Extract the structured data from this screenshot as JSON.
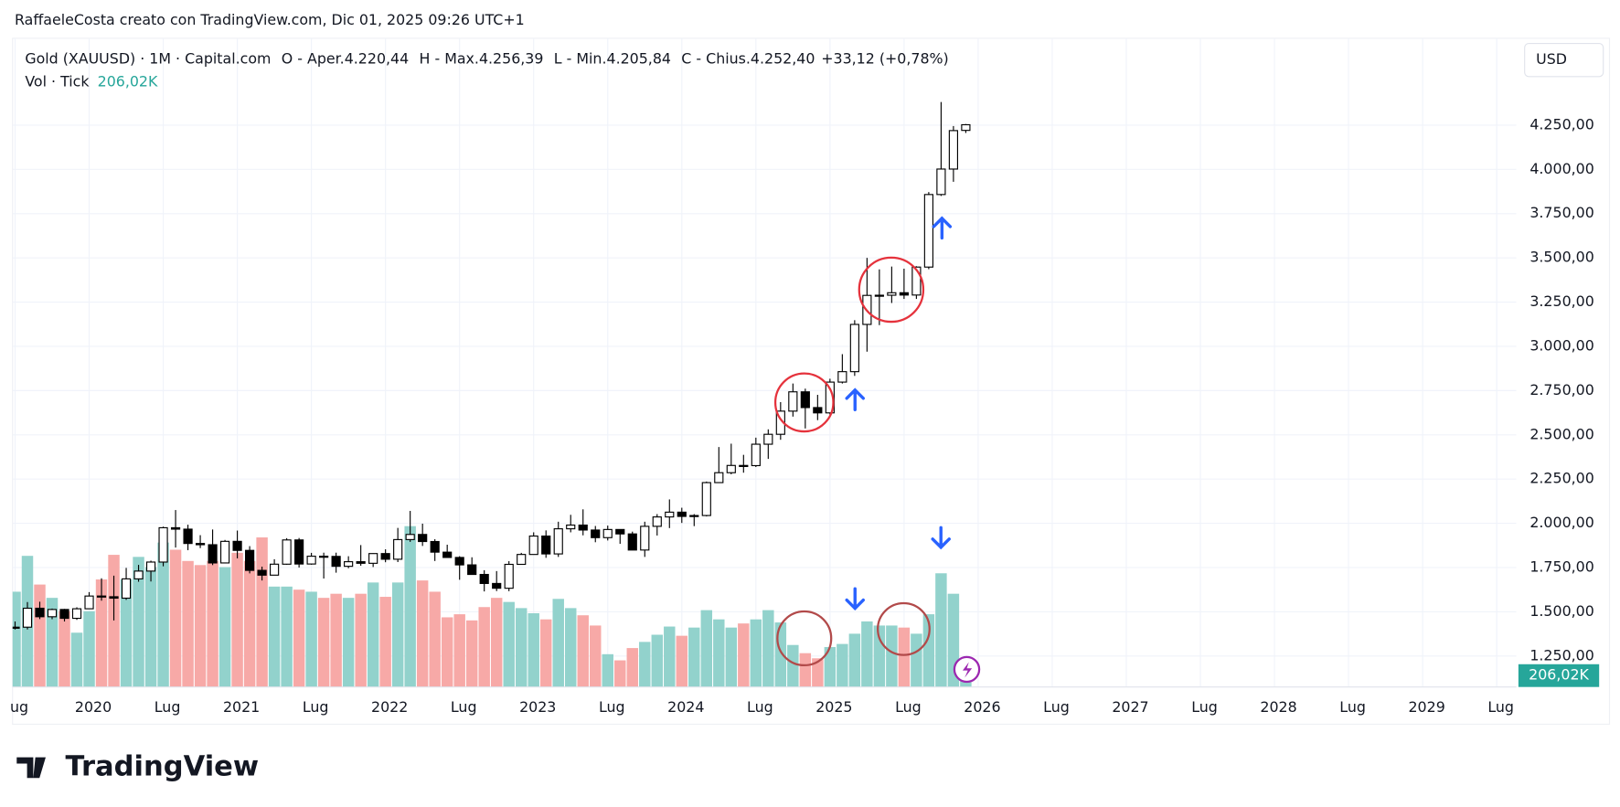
{
  "header": "RaffaeleCosta creato con TradingView.com, Dic 01, 2025 09:26 UTC+1",
  "chart_data": {
    "type": "candlestick",
    "title": "Gold (XAUUSD) · 1M · Capital.com",
    "ohlc_legend": [
      [
        "O - Aper.",
        "4.220,44"
      ],
      [
        "H - Max.",
        "4.256,39"
      ],
      [
        "L - Min.",
        "4.205,84"
      ],
      [
        "C - Chius.",
        "4.252,40"
      ]
    ],
    "change": "+33,12 (+0,78%)",
    "currency": "USD",
    "x": [
      "2019-07",
      "2019-08",
      "2019-09",
      "2019-10",
      "2019-11",
      "2019-12",
      "2020-01",
      "2020-02",
      "2020-03",
      "2020-04",
      "2020-05",
      "2020-06",
      "2020-07",
      "2020-08",
      "2020-09",
      "2020-10",
      "2020-11",
      "2020-12",
      "2021-01",
      "2021-02",
      "2021-03",
      "2021-04",
      "2021-05",
      "2021-06",
      "2021-07",
      "2021-08",
      "2021-09",
      "2021-10",
      "2021-11",
      "2021-12",
      "2022-01",
      "2022-02",
      "2022-03",
      "2022-04",
      "2022-05",
      "2022-06",
      "2022-07",
      "2022-08",
      "2022-09",
      "2022-10",
      "2022-11",
      "2022-12",
      "2023-01",
      "2023-02",
      "2023-03",
      "2023-04",
      "2023-05",
      "2023-06",
      "2023-07",
      "2023-08",
      "2023-09",
      "2023-10",
      "2023-11",
      "2023-12",
      "2024-01",
      "2024-02",
      "2024-03",
      "2024-04",
      "2024-05",
      "2024-06",
      "2024-07",
      "2024-08",
      "2024-09",
      "2024-10",
      "2024-11",
      "2024-12",
      "2025-01",
      "2025-02",
      "2025-03",
      "2025-04",
      "2025-05",
      "2025-06",
      "2025-07",
      "2025-08",
      "2025-09",
      "2025-10",
      "2025-11",
      "2025-12"
    ],
    "open": [
      1409,
      1413,
      1520,
      1472,
      1513,
      1463,
      1517,
      1589,
      1585,
      1577,
      1686,
      1730,
      1781,
      1975,
      1967,
      1886,
      1879,
      1776,
      1898,
      1847,
      1734,
      1707,
      1769,
      1906,
      1770,
      1814,
      1813,
      1757,
      1783,
      1774,
      1829,
      1797,
      1908,
      1937,
      1897,
      1837,
      1807,
      1765,
      1711,
      1660,
      1633,
      1768,
      1824,
      1928,
      1827,
      1969,
      1990,
      1962,
      1919,
      1965,
      1940,
      1849,
      1983,
      2036,
      2063,
      2039,
      2044,
      2230,
      2286,
      2327,
      2326,
      2447,
      2503,
      2634,
      2743,
      2654,
      2624,
      2798,
      2857,
      3124,
      3288,
      3289,
      3303,
      3290,
      3448,
      3858,
      4002,
      4220.44
    ],
    "high": [
      1445,
      1555,
      1557,
      1518,
      1516,
      1525,
      1611,
      1689,
      1704,
      1748,
      1765,
      1789,
      1981,
      2075,
      1992,
      1933,
      1965,
      1906,
      1959,
      1871,
      1755,
      1797,
      1916,
      1917,
      1833,
      1834,
      1834,
      1814,
      1877,
      1831,
      1853,
      1974,
      2070,
      1998,
      1910,
      1879,
      1814,
      1808,
      1735,
      1730,
      1786,
      1833,
      1949,
      1960,
      2009,
      2048,
      2079,
      1985,
      1987,
      1966,
      1953,
      2009,
      2052,
      2135,
      2088,
      2052,
      2236,
      2431,
      2450,
      2387,
      2484,
      2531,
      2685,
      2790,
      2761,
      2726,
      2817,
      2956,
      3148,
      3500,
      3435,
      3451,
      3439,
      3453,
      3872,
      4381,
      4245,
      4256.39
    ],
    "low": [
      1400,
      1400,
      1459,
      1458,
      1445,
      1454,
      1517,
      1563,
      1451,
      1567,
      1670,
      1671,
      1757,
      1863,
      1848,
      1860,
      1764,
      1775,
      1802,
      1717,
      1677,
      1706,
      1766,
      1750,
      1766,
      1688,
      1721,
      1746,
      1760,
      1753,
      1780,
      1781,
      1895,
      1872,
      1787,
      1805,
      1681,
      1710,
      1615,
      1617,
      1616,
      1766,
      1823,
      1805,
      1810,
      1949,
      1932,
      1893,
      1903,
      1884,
      1848,
      1810,
      1931,
      1973,
      2002,
      1984,
      2039,
      2228,
      2277,
      2286,
      2318,
      2364,
      2472,
      2603,
      2536,
      2583,
      2614,
      2790,
      2833,
      2970,
      3120,
      3245,
      3268,
      3268,
      3436,
      3850,
      3930,
      4205.84
    ],
    "close": [
      1413,
      1520,
      1472,
      1513,
      1463,
      1517,
      1589,
      1585,
      1577,
      1686,
      1730,
      1781,
      1975,
      1967,
      1886,
      1879,
      1776,
      1898,
      1847,
      1734,
      1707,
      1769,
      1906,
      1770,
      1814,
      1813,
      1757,
      1783,
      1774,
      1829,
      1797,
      1908,
      1937,
      1897,
      1837,
      1807,
      1765,
      1711,
      1660,
      1633,
      1768,
      1824,
      1928,
      1827,
      1969,
      1990,
      1962,
      1919,
      1965,
      1940,
      1849,
      1983,
      2036,
      2063,
      2039,
      2044,
      2230,
      2286,
      2327,
      2326,
      2447,
      2503,
      2634,
      2743,
      2654,
      2624,
      2798,
      2857,
      3124,
      3288,
      3289,
      3303,
      3290,
      3448,
      3858,
      4002,
      4219.28,
      4252.4
    ],
    "up_color": "#ffffff",
    "down_color": "#000000",
    "grid": true,
    "ylim": [
      1075,
      4741
    ],
    "yticks": [
      {
        "value": 1250,
        "label": "1.250,00"
      },
      {
        "value": 1500,
        "label": "1.500,00"
      },
      {
        "value": 1750,
        "label": "1.750,00"
      },
      {
        "value": 2000,
        "label": "2.000,00"
      },
      {
        "value": 2250,
        "label": "2.250,00"
      },
      {
        "value": 2500,
        "label": "2.500,00"
      },
      {
        "value": 2750,
        "label": "2.750,00"
      },
      {
        "value": 3000,
        "label": "3.000,00"
      },
      {
        "value": 3250,
        "label": "3.250,00"
      },
      {
        "value": 3500,
        "label": "3.500,00"
      },
      {
        "value": 3750,
        "label": "3.750,00"
      },
      {
        "value": 4000,
        "label": "4.000,00"
      },
      {
        "value": 4250,
        "label": "4.250,00"
      }
    ],
    "xticks": [
      {
        "value": "2019-07",
        "label": "ug"
      },
      {
        "value": "2020-01",
        "label": "2020"
      },
      {
        "value": "2020-07",
        "label": "Lug"
      },
      {
        "value": "2021-01",
        "label": "2021"
      },
      {
        "value": "2021-07",
        "label": "Lug"
      },
      {
        "value": "2022-01",
        "label": "2022"
      },
      {
        "value": "2022-07",
        "label": "Lug"
      },
      {
        "value": "2023-01",
        "label": "2023"
      },
      {
        "value": "2023-07",
        "label": "Lug"
      },
      {
        "value": "2024-01",
        "label": "2024"
      },
      {
        "value": "2024-07",
        "label": "Lug"
      },
      {
        "value": "2025-01",
        "label": "2025"
      },
      {
        "value": "2025-07",
        "label": "Lug"
      },
      {
        "value": "2026-01",
        "label": "2026"
      },
      {
        "value": "2026-07",
        "label": "Lug"
      },
      {
        "value": "2027-01",
        "label": "2027"
      },
      {
        "value": "2027-07",
        "label": "Lug"
      },
      {
        "value": "2028-01",
        "label": "2028"
      },
      {
        "value": "2028-07",
        "label": "Lug"
      },
      {
        "value": "2029-01",
        "label": "2029"
      },
      {
        "value": "2029-07",
        "label": "Lug"
      }
    ],
    "volume": {
      "name": "Vol · Tick",
      "up_color": "#92d2cc",
      "down_color": "#f7a9a7",
      "vol_ylim": [
        0,
        10765
      ],
      "values": [
        1581,
        2176,
        1700,
        1479,
        1258,
        901,
        1258,
        1785,
        2193,
        1785,
        2159,
        1989,
        2397,
        2278,
        2091,
        2023,
        2091,
        1989,
        2227,
        2091,
        2482,
        1666,
        1666,
        1615,
        1581,
        1479,
        1547,
        1479,
        1547,
        1734,
        1496,
        1734,
        2669,
        1768,
        1581,
        1156,
        1207,
        1105,
        1326,
        1479,
        1411,
        1309,
        1224,
        1122,
        1462,
        1309,
        1190,
        1020,
        544,
        442,
        646,
        748,
        867,
        1003,
        850,
        986,
        1275,
        1122,
        986,
        1054,
        1122,
        1275,
        1071,
        697,
        561,
        476,
        663,
        714,
        884,
        1088,
        1020,
        1020,
        986,
        884,
        1207,
        1887,
        1547,
        206.02
      ],
      "last_label": "206,02K"
    }
  },
  "footer": {
    "logo": "TradingView"
  }
}
